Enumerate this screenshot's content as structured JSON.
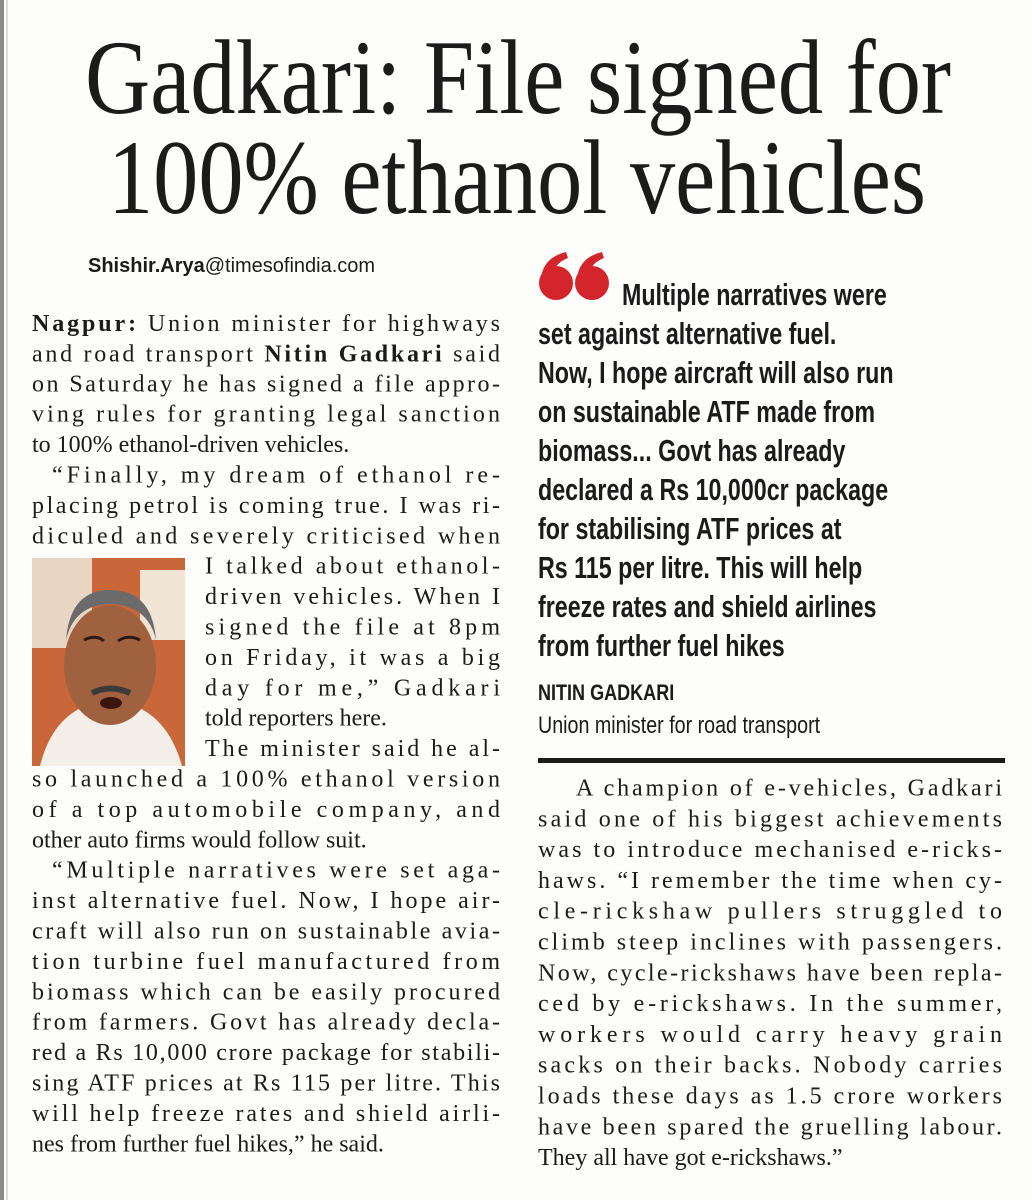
{
  "headline": {
    "lines": [
      "Gadkari: File signed for",
      "100% ethanol vehicles"
    ]
  },
  "byline": {
    "name": "Shishir.Arya",
    "domain": "@timesofindia.com"
  },
  "left_column": {
    "paragraphs": [
      {
        "lines": [
          [
            {
              "text": "Nagpur:",
              "bold": true
            },
            {
              "text": " Union minister for highways",
              "bold": false
            }
          ],
          [
            {
              "text": "and road transport ",
              "bold": false
            },
            {
              "text": "Nitin Gadkari",
              "bold": true
            },
            {
              "text": " said",
              "bold": false
            }
          ],
          "on Saturday he has signed a file appro-",
          "ving rules for granting legal sanction",
          "to 100% ethanol-driven vehicles."
        ]
      },
      {
        "lines": [
          "“Finally, my dream of ethanol re-",
          "placing petrol is coming true. I was ri-",
          "diculed and severely criticised when",
          "I talked about ethanol-",
          "driven vehicles. When I",
          "signed the file at 8pm",
          "on Friday, it was a big",
          "day for me,” Gadkari",
          "told reporters here."
        ]
      },
      {
        "lines": [
          "The minister said he al-",
          "so launched a 100% ethanol version",
          "of a top automobile company, and",
          "other auto firms would follow suit."
        ]
      },
      {
        "lines": [
          "“Multiple narratives were set aga-",
          "inst alternative fuel. Now, I hope air-",
          "craft will also run on sustainable avia-",
          "tion turbine fuel manufactured from",
          "biomass which can be easily procured",
          "from farmers. Govt has already decla-",
          "red a Rs 10,000 crore package for stabili-",
          "sing ATF prices at Rs 115 per litre. This",
          "will help freeze rates and shield airli-",
          "nes from further fuel hikes,” he said."
        ]
      }
    ]
  },
  "pull_quote": {
    "lines": [
      "Multiple narratives were",
      "set against alternative fuel.",
      "Now, I hope aircraft will also run",
      "on sustainable ATF made from",
      "biomass... Govt has already",
      "declared a Rs 10,000cr package",
      "for stabilising ATF prices at",
      "Rs 115 per litre. This will help",
      "freeze rates and shield airlines",
      "from further fuel hikes"
    ],
    "attribution": {
      "name": "NITIN GADKARI",
      "title": "Union minister for road transport"
    }
  },
  "right_column": {
    "paragraphs": [
      {
        "lines": [
          "A champion of e-vehicles, Gadkari",
          "said one of his biggest achievements",
          "was to introduce mechanised e-ricks-",
          "haws. “I remember the time when cy-",
          "cle-rickshaw pullers struggled to",
          "climb steep inclines with passengers.",
          "Now, cycle-rickshaws have been repla-",
          "ced by e-rickshaws. In the summer,",
          "workers would carry heavy grain",
          "sacks on their backs. Nobody carries",
          "loads these days as 1.5 crore workers",
          "have been spared the gruelling labour.",
          "They all have got e-rickshaws.”"
        ]
      }
    ]
  }
}
